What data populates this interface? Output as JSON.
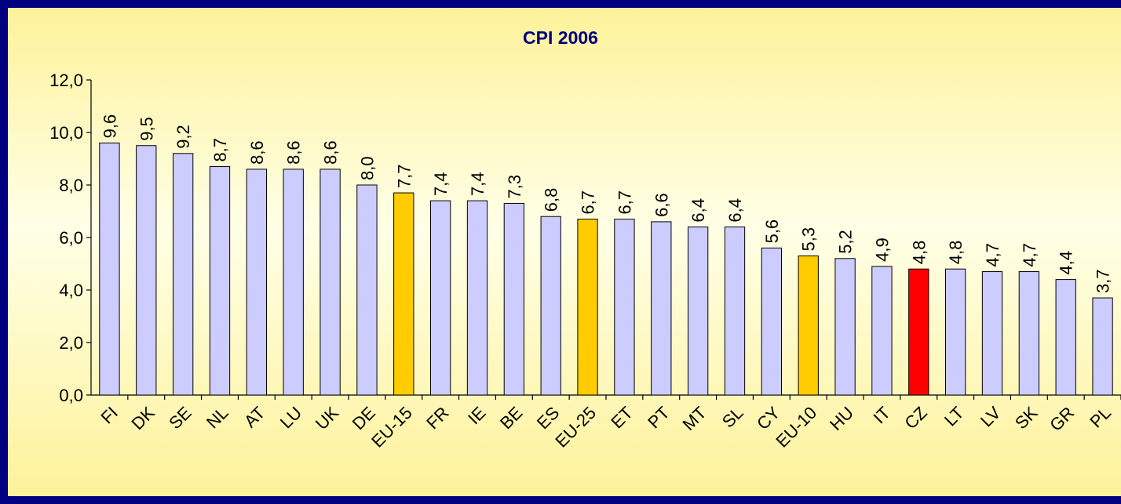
{
  "chart_data": {
    "type": "bar",
    "title": "CPI 2006",
    "categories": [
      "FI",
      "DK",
      "SE",
      "NL",
      "AT",
      "LU",
      "UK",
      "DE",
      "EU-15",
      "FR",
      "IE",
      "BE",
      "ES",
      "EU-25",
      "ET",
      "PT",
      "MT",
      "SL",
      "CY",
      "EU-10",
      "HU",
      "IT",
      "CZ",
      "LT",
      "LV",
      "SK",
      "GR",
      "PL"
    ],
    "values": [
      9.6,
      9.5,
      9.2,
      8.7,
      8.6,
      8.6,
      8.6,
      8.0,
      7.7,
      7.4,
      7.4,
      7.3,
      6.8,
      6.7,
      6.7,
      6.6,
      6.4,
      6.4,
      5.6,
      5.3,
      5.2,
      4.9,
      4.8,
      4.8,
      4.7,
      4.7,
      4.4,
      3.7
    ],
    "value_labels": [
      "9,6",
      "9,5",
      "9,2",
      "8,7",
      "8,6",
      "8,6",
      "8,6",
      "8,0",
      "7,7",
      "7,4",
      "7,4",
      "7,3",
      "6,8",
      "6,7",
      "6,7",
      "6,6",
      "6,4",
      "6,4",
      "5,6",
      "5,3",
      "5,2",
      "4,9",
      "4,8",
      "4,8",
      "4,7",
      "4,7",
      "4,4",
      "3,7"
    ],
    "colors": [
      "#ccccff",
      "#ccccff",
      "#ccccff",
      "#ccccff",
      "#ccccff",
      "#ccccff",
      "#ccccff",
      "#ccccff",
      "#ffcc00",
      "#ccccff",
      "#ccccff",
      "#ccccff",
      "#ccccff",
      "#ffcc00",
      "#ccccff",
      "#ccccff",
      "#ccccff",
      "#ccccff",
      "#ccccff",
      "#ffcc00",
      "#ccccff",
      "#ccccff",
      "#ff0000",
      "#ccccff",
      "#ccccff",
      "#ccccff",
      "#ccccff",
      "#ccccff"
    ],
    "ylim": [
      0,
      12
    ],
    "yticks": [
      {
        "value": 0,
        "label": "0,0"
      },
      {
        "value": 2,
        "label": "2,0"
      },
      {
        "value": 4,
        "label": "4,0"
      },
      {
        "value": 6,
        "label": "6,0"
      },
      {
        "value": 8,
        "label": "8,0"
      },
      {
        "value": 10,
        "label": "10,0"
      },
      {
        "value": 12,
        "label": "12,0"
      }
    ],
    "grid": false
  }
}
